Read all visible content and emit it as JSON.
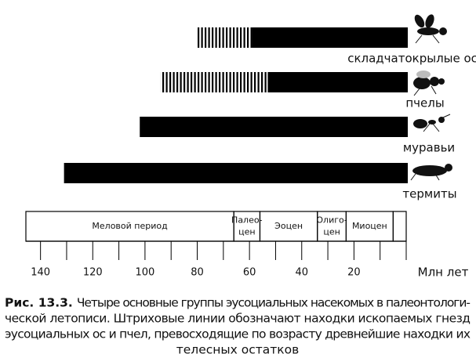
{
  "chart_data": {
    "type": "timeline",
    "groups": [
      {
        "label": "складчатокрылые осы",
        "nest_start": 80,
        "solid_start": 59
      },
      {
        "label": "пчелы",
        "nest_start": 94,
        "solid_start": 53
      },
      {
        "label": "муравьи",
        "nest_start": null,
        "solid_start": 102
      },
      {
        "label": "термиты",
        "nest_start": null,
        "solid_start": 131
      }
    ],
    "periods": [
      {
        "label": [
          "Меловой период"
        ],
        "start": 145.6,
        "end": 66
      },
      {
        "label": [
          "Палео-",
          "цен"
        ],
        "start": 66,
        "end": 56
      },
      {
        "label": [
          "Эоцен"
        ],
        "start": 56,
        "end": 34
      },
      {
        "label": [
          "Олиго-",
          "цен"
        ],
        "start": 34,
        "end": 23
      },
      {
        "label": [
          "Миоцен"
        ],
        "start": 23,
        "end": 5
      },
      {
        "label": null,
        "start": 5,
        "end": 0
      }
    ],
    "xlim": [
      145.6,
      0
    ],
    "xticks": [
      140,
      120,
      100,
      80,
      60,
      40,
      20
    ],
    "minor_xticks": [
      130,
      110,
      90,
      70,
      50,
      30,
      10,
      0
    ],
    "x_label": "Млн лет",
    "color": "#000000",
    "caption_label": "Рис. 13.3.",
    "caption_lines": [
      "Четыре основные группы эусоциальных насекомых в палеонтологи-",
      "ческой летописи. Штриховые линии обозначают находки ископаемых гнезд",
      "эусоциальных ос и пчел, превосходящие по возрасту древнейшие находки их",
      "телесных остатков"
    ]
  }
}
